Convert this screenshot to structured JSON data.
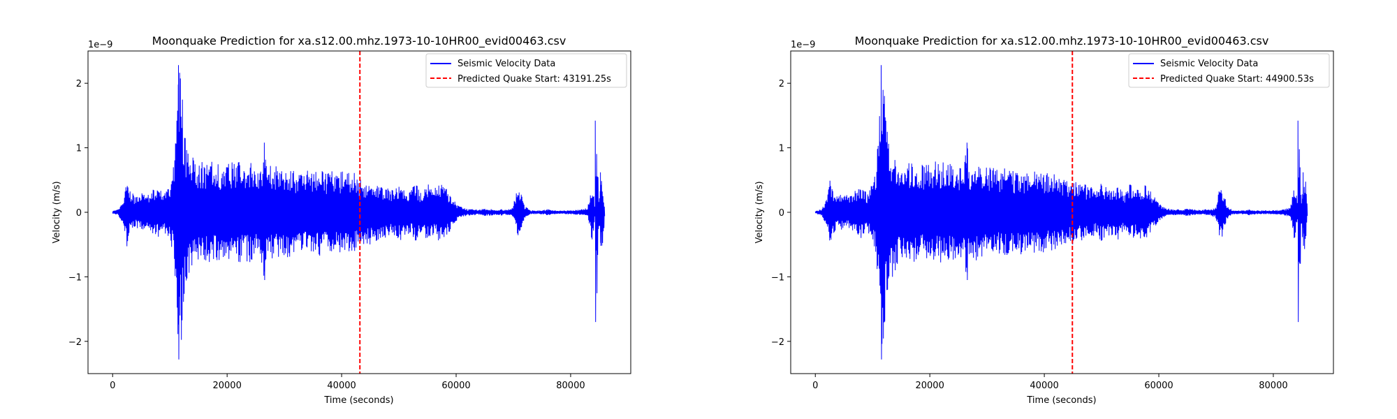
{
  "chart_data": [
    {
      "type": "line",
      "title": "Moonquake Prediction for xa.s12.00.mhz.1973-10-10HR00_evid00463.csv",
      "xlabel": "Time (seconds)",
      "ylabel": "Velocity (m/s)",
      "y_offset_label": "1e−9",
      "xlim": [
        -4300,
        90500
      ],
      "ylim": [
        -2.5,
        2.5
      ],
      "x_ticks": [
        0,
        20000,
        40000,
        60000,
        80000
      ],
      "x_tick_labels": [
        "0",
        "20000",
        "40000",
        "60000",
        "80000"
      ],
      "y_ticks": [
        -2,
        -1,
        0,
        1,
        2
      ],
      "y_tick_labels": [
        "−2",
        "−1",
        "0",
        "1",
        "2"
      ],
      "grid": false,
      "legend_position": "top-right",
      "series": [
        {
          "name": "Seismic Velocity Data",
          "color": "#0000ff",
          "envelope_x": [
            0,
            1000,
            2000,
            2500,
            3000,
            3500,
            4000,
            5000,
            6000,
            7000,
            8000,
            9000,
            10000,
            10500,
            11000,
            11500,
            12000,
            12500,
            13000,
            14000,
            15000,
            16000,
            17000,
            18000,
            19000,
            20000,
            21000,
            22000,
            23000,
            24000,
            25000,
            26000,
            26500,
            27000,
            28000,
            29000,
            30000,
            31000,
            32000,
            33000,
            34000,
            35000,
            36000,
            37000,
            38000,
            39000,
            40000,
            41000,
            42000,
            43000,
            44000,
            45000,
            46000,
            47000,
            48000,
            49000,
            50000,
            51000,
            52000,
            53000,
            54000,
            55000,
            56000,
            57000,
            58000,
            59000,
            60000,
            61000,
            62000,
            63000,
            64000,
            65000,
            66000,
            67000,
            68000,
            69000,
            70000,
            70500,
            71000,
            71500,
            72000,
            73000,
            74000,
            75000,
            76000,
            77000,
            78000,
            79000,
            80000,
            81000,
            82000,
            83000,
            83700,
            84000,
            84300,
            84600,
            84900,
            85200,
            85500,
            86000
          ],
          "envelope_y": [
            0.02,
            0.05,
            0.2,
            0.55,
            0.35,
            0.3,
            0.25,
            0.3,
            0.25,
            0.35,
            0.4,
            0.3,
            0.45,
            0.6,
            1.2,
            2.28,
            2.05,
            1.3,
            1.1,
            0.9,
            0.75,
            0.8,
            0.8,
            0.75,
            0.75,
            0.75,
            0.8,
            0.8,
            0.75,
            0.8,
            0.7,
            0.75,
            1.08,
            0.7,
            0.75,
            0.7,
            0.7,
            0.7,
            0.65,
            0.7,
            0.65,
            0.65,
            0.7,
            0.6,
            0.65,
            0.6,
            0.65,
            0.6,
            0.65,
            0.55,
            0.5,
            0.5,
            0.45,
            0.45,
            0.4,
            0.35,
            0.45,
            0.4,
            0.35,
            0.45,
            0.3,
            0.45,
            0.35,
            0.45,
            0.4,
            0.3,
            0.15,
            0.08,
            0.05,
            0.05,
            0.04,
            0.06,
            0.05,
            0.04,
            0.05,
            0.04,
            0.1,
            0.35,
            0.4,
            0.25,
            0.1,
            0.03,
            0.03,
            0.03,
            0.05,
            0.03,
            0.03,
            0.03,
            0.03,
            0.04,
            0.05,
            0.08,
            0.45,
            0.3,
            0.1,
            1.42,
            0.15,
            0.5,
            0.7,
            0.02
          ]
        },
        {
          "name": "Predicted Quake Start: 43191.25s",
          "color": "#ff0000",
          "style": "dashed",
          "x": 43191.25
        }
      ]
    },
    {
      "type": "line",
      "title": "Moonquake Prediction for xa.s12.00.mhz.1973-10-10HR00_evid00463.csv",
      "xlabel": "Time (seconds)",
      "ylabel": "Velocity (m/s)",
      "y_offset_label": "1e−9",
      "xlim": [
        -4300,
        90500
      ],
      "ylim": [
        -2.5,
        2.5
      ],
      "x_ticks": [
        0,
        20000,
        40000,
        60000,
        80000
      ],
      "x_tick_labels": [
        "0",
        "20000",
        "40000",
        "60000",
        "80000"
      ],
      "y_ticks": [
        -2,
        -1,
        0,
        1,
        2
      ],
      "y_tick_labels": [
        "−2",
        "−1",
        "0",
        "1",
        "2"
      ],
      "grid": false,
      "legend_position": "top-right",
      "series": [
        {
          "name": "Seismic Velocity Data",
          "color": "#0000ff",
          "envelope_x": [
            0,
            1000,
            2000,
            2500,
            3000,
            3500,
            4000,
            5000,
            6000,
            7000,
            8000,
            9000,
            10000,
            10500,
            11000,
            11500,
            12000,
            12500,
            13000,
            14000,
            15000,
            16000,
            17000,
            18000,
            19000,
            20000,
            21000,
            22000,
            23000,
            24000,
            25000,
            26000,
            26500,
            27000,
            28000,
            29000,
            30000,
            31000,
            32000,
            33000,
            34000,
            35000,
            36000,
            37000,
            38000,
            39000,
            40000,
            41000,
            42000,
            43000,
            44000,
            45000,
            46000,
            47000,
            48000,
            49000,
            50000,
            51000,
            52000,
            53000,
            54000,
            55000,
            56000,
            57000,
            58000,
            59000,
            60000,
            61000,
            62000,
            63000,
            64000,
            65000,
            66000,
            67000,
            68000,
            69000,
            70000,
            70500,
            71000,
            71500,
            72000,
            73000,
            74000,
            75000,
            76000,
            77000,
            78000,
            79000,
            80000,
            81000,
            82000,
            83000,
            83700,
            84000,
            84300,
            84600,
            84900,
            85200,
            85500,
            86000
          ],
          "envelope_y": [
            0.02,
            0.05,
            0.2,
            0.55,
            0.35,
            0.3,
            0.25,
            0.3,
            0.25,
            0.35,
            0.4,
            0.3,
            0.45,
            0.6,
            1.2,
            2.28,
            2.05,
            1.3,
            1.1,
            0.9,
            0.75,
            0.8,
            0.8,
            0.75,
            0.75,
            0.75,
            0.8,
            0.8,
            0.75,
            0.8,
            0.7,
            0.75,
            1.08,
            0.7,
            0.75,
            0.7,
            0.7,
            0.7,
            0.65,
            0.7,
            0.65,
            0.65,
            0.7,
            0.6,
            0.65,
            0.6,
            0.65,
            0.6,
            0.65,
            0.55,
            0.5,
            0.5,
            0.45,
            0.45,
            0.4,
            0.35,
            0.45,
            0.4,
            0.35,
            0.45,
            0.3,
            0.45,
            0.35,
            0.45,
            0.4,
            0.3,
            0.15,
            0.08,
            0.05,
            0.05,
            0.04,
            0.06,
            0.05,
            0.04,
            0.05,
            0.04,
            0.1,
            0.35,
            0.4,
            0.25,
            0.1,
            0.03,
            0.03,
            0.03,
            0.05,
            0.03,
            0.03,
            0.03,
            0.03,
            0.04,
            0.05,
            0.08,
            0.45,
            0.3,
            0.1,
            1.42,
            0.15,
            0.5,
            0.7,
            0.02
          ]
        },
        {
          "name": "Predicted Quake Start: 44900.53s",
          "color": "#ff0000",
          "style": "dashed",
          "x": 44900.53
        }
      ]
    }
  ]
}
